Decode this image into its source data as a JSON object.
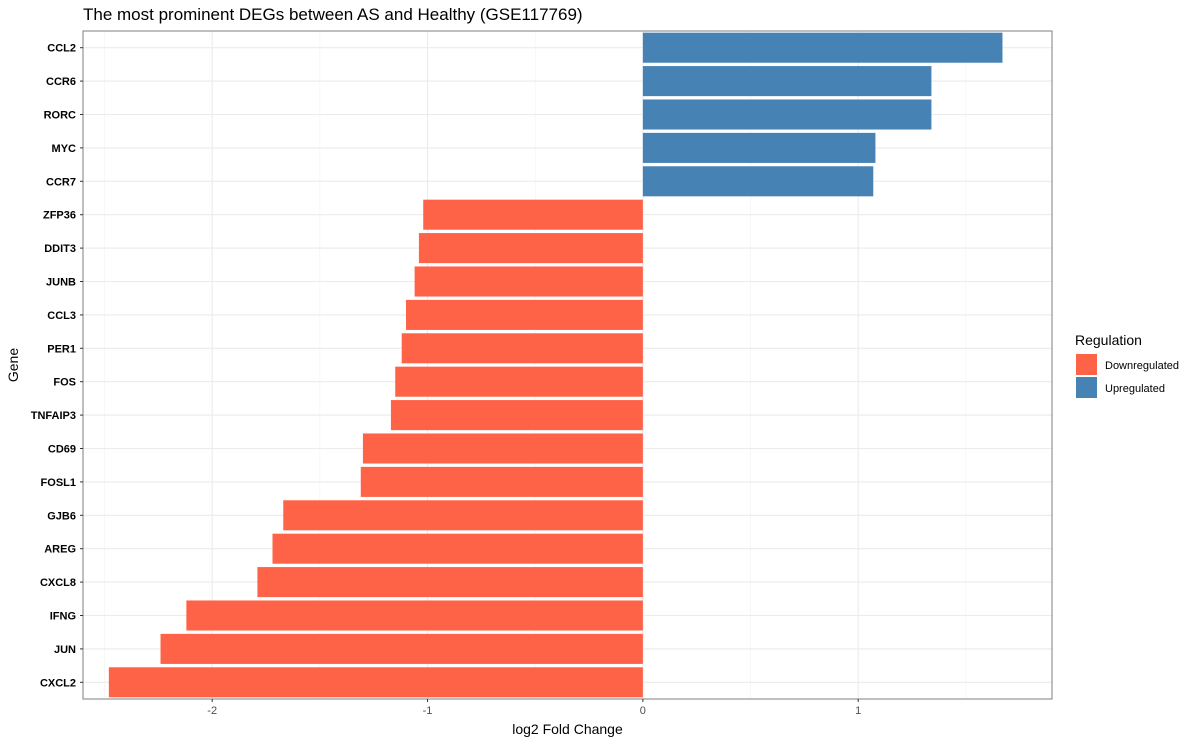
{
  "chart_data": {
    "type": "bar",
    "orientation": "horizontal",
    "title": "The most prominent DEGs between AS and Healthy (GSE117769)",
    "xlabel": "log2 Fold Change",
    "ylabel": "Gene",
    "xlim": [
      -2.6,
      1.9
    ],
    "xticks": [
      -2,
      -1,
      0,
      1
    ],
    "grid": true,
    "legend": {
      "title": "Regulation",
      "placement": "right",
      "items": [
        {
          "label": "Downregulated",
          "color": "#FF6347"
        },
        {
          "label": "Upregulated",
          "color": "#4682B4"
        }
      ]
    },
    "categories": [
      "CCL2",
      "CCR6",
      "RORC",
      "MYC",
      "CCR7",
      "ZFP36",
      "DDIT3",
      "JUNB",
      "CCL3",
      "PER1",
      "FOS",
      "TNFAIP3",
      "CD69",
      "FOSL1",
      "GJB6",
      "AREG",
      "CXCL8",
      "IFNG",
      "JUN",
      "CXCL2"
    ],
    "values": [
      1.67,
      1.34,
      1.34,
      1.08,
      1.07,
      -1.02,
      -1.04,
      -1.06,
      -1.1,
      -1.12,
      -1.15,
      -1.17,
      -1.3,
      -1.31,
      -1.67,
      -1.72,
      -1.79,
      -2.12,
      -2.24,
      -2.48
    ],
    "regulation": [
      "Upregulated",
      "Upregulated",
      "Upregulated",
      "Upregulated",
      "Upregulated",
      "Downregulated",
      "Downregulated",
      "Downregulated",
      "Downregulated",
      "Downregulated",
      "Downregulated",
      "Downregulated",
      "Downregulated",
      "Downregulated",
      "Downregulated",
      "Downregulated",
      "Downregulated",
      "Downregulated",
      "Downregulated",
      "Downregulated"
    ]
  }
}
